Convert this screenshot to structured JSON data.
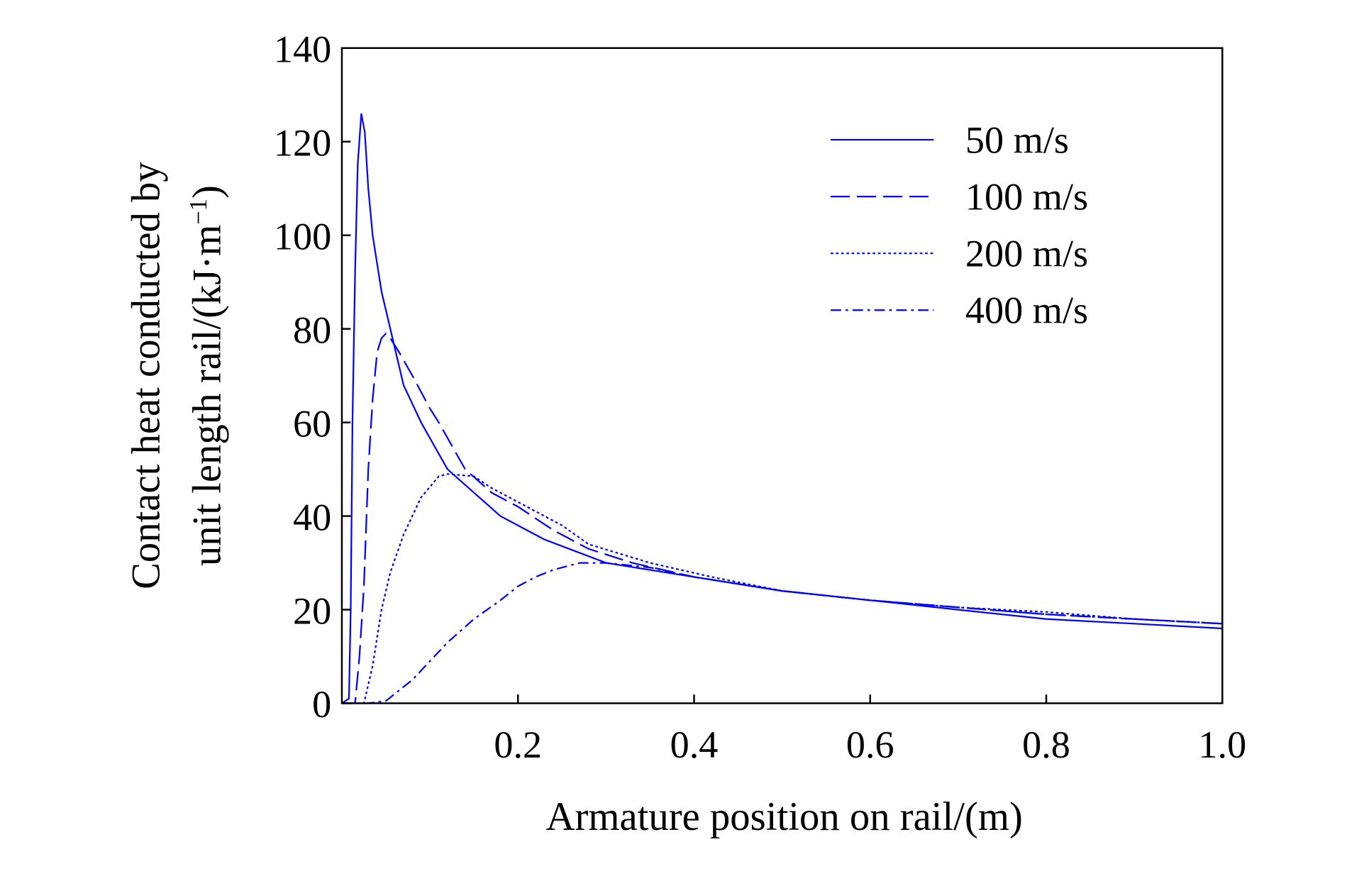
{
  "chart_data": {
    "type": "line",
    "title": "",
    "xlabel": "Armature position on rail/(m)",
    "ylabel_line1": "Contact heat conducted by",
    "ylabel_line2": "unit length rail/(kJ·m",
    "ylabel_sup": "−1",
    "ylabel_close": ")",
    "xlim": [
      0,
      1.0
    ],
    "ylim": [
      0,
      140
    ],
    "xticks": [
      "0.2",
      "0.4",
      "0.6",
      "0.8",
      "1.0"
    ],
    "xtick_values": [
      0.2,
      0.4,
      0.6,
      0.8,
      1.0
    ],
    "yticks": [
      "0",
      "20",
      "40",
      "60",
      "80",
      "100",
      "120",
      "140"
    ],
    "ytick_values": [
      0,
      20,
      40,
      60,
      80,
      100,
      120,
      140
    ],
    "grid": false,
    "legend_position": "top-right",
    "color": "#0000ff",
    "series": [
      {
        "name": "50 m/s",
        "dash": "solid",
        "x": [
          0,
          0.008,
          0.01,
          0.012,
          0.015,
          0.018,
          0.022,
          0.026,
          0.03,
          0.035,
          0.045,
          0.055,
          0.07,
          0.09,
          0.12,
          0.15,
          0.18,
          0.23,
          0.3,
          0.4,
          0.5,
          0.6,
          0.7,
          0.8,
          0.9,
          1.0
        ],
        "y": [
          0,
          1,
          20,
          60,
          92,
          115,
          126,
          122,
          110,
          100,
          88,
          80,
          68,
          60,
          50,
          45,
          40,
          35,
          30,
          27,
          24,
          22,
          20,
          18,
          17,
          16
        ]
      },
      {
        "name": "100 m/s",
        "dash": "long-dash",
        "x": [
          0,
          0.015,
          0.02,
          0.025,
          0.03,
          0.035,
          0.04,
          0.045,
          0.05,
          0.055,
          0.065,
          0.08,
          0.1,
          0.11,
          0.14,
          0.17,
          0.2,
          0.24,
          0.28,
          0.33,
          0.4,
          0.5,
          0.6,
          0.7,
          0.8,
          0.9,
          1.0
        ],
        "y": [
          0,
          0,
          10,
          25,
          50,
          65,
          75,
          78,
          79,
          78,
          75,
          70,
          63,
          60,
          50,
          45,
          42,
          37,
          33,
          30,
          27,
          24,
          22,
          20.5,
          19,
          18,
          17
        ]
      },
      {
        "name": "200 m/s",
        "dash": "dotted",
        "x": [
          0,
          0.025,
          0.035,
          0.045,
          0.055,
          0.07,
          0.09,
          0.11,
          0.12,
          0.15,
          0.17,
          0.2,
          0.25,
          0.28,
          0.35,
          0.42,
          0.5,
          0.6,
          0.7,
          0.8,
          0.9,
          1.0
        ],
        "y": [
          0,
          0,
          8,
          20,
          28,
          36,
          44,
          48.5,
          49,
          48.5,
          46,
          43,
          38,
          34,
          30,
          27,
          24,
          22,
          20.5,
          19.5,
          18,
          17
        ]
      },
      {
        "name": "400 m/s",
        "dash": "dash-dot",
        "x": [
          0,
          0.03,
          0.05,
          0.06,
          0.08,
          0.1,
          0.12,
          0.15,
          0.18,
          0.2,
          0.22,
          0.24,
          0.27,
          0.3,
          0.35,
          0.4,
          0.5,
          0.6,
          0.7,
          0.8,
          0.9,
          1.0
        ],
        "y": [
          0,
          0,
          0.5,
          2,
          5,
          9,
          13,
          18,
          22,
          25,
          27,
          28.5,
          30,
          30,
          29,
          27,
          24,
          22,
          20.5,
          19,
          18,
          17
        ]
      }
    ]
  }
}
